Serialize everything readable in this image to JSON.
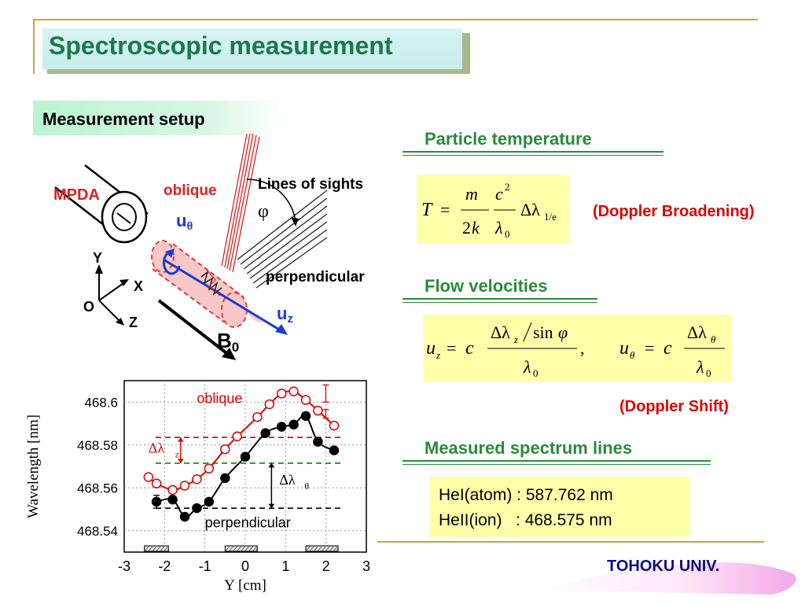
{
  "slide": {
    "title": "Spectroscopic measurement",
    "setup_label": "Measurement setup",
    "footer": "TOHOKU UNIV."
  },
  "diagram": {
    "mpda": "MPDA",
    "oblique": "oblique",
    "lines_of_sights": "Lines of sights",
    "phi": "φ",
    "u_theta": "u",
    "u_theta_sub": "θ",
    "perpendicular": "perpendicular",
    "u_z": "u",
    "u_z_sub": "z",
    "b0": "B",
    "b0_sub": "0",
    "axis_y": "Y",
    "axis_x": "X",
    "axis_z": "Z",
    "origin": "O"
  },
  "sections": {
    "temperature": {
      "title": "Particle temperature",
      "note": "(Doppler Broadening)"
    },
    "flow": {
      "title": "Flow velocities",
      "note": "(Doppler Shift)"
    },
    "spectrum": {
      "title": "Measured spectrum lines",
      "lines": [
        "HeI(atom) : 587.762 nm",
        "HeII(ion)   : 468.575 nm"
      ]
    }
  },
  "chart_data": {
    "type": "scatter",
    "xlabel": "Y [cm]",
    "ylabel": "Wavelength [nm]",
    "xlim": [
      -3,
      3
    ],
    "ylim": [
      468.53,
      468.61
    ],
    "x_ticks": [
      "-3",
      "-2",
      "-1",
      "0",
      "1",
      "2",
      "3"
    ],
    "y_ticks": [
      "468.54",
      "468.56",
      "468.58",
      "468.6"
    ],
    "y_tick_values": [
      468.54,
      468.56,
      468.58,
      468.6
    ],
    "series": [
      {
        "name": "oblique",
        "color": "#dd0000",
        "marker": "open-circle",
        "x": [
          -2.4,
          -2.2,
          -1.8,
          -1.5,
          -1.2,
          -0.9,
          -0.5,
          -0.2,
          0.3,
          0.6,
          0.9,
          1.2,
          1.5,
          1.8,
          2.2
        ],
        "y": [
          468.565,
          468.562,
          468.559,
          468.561,
          468.564,
          468.569,
          468.578,
          468.584,
          468.593,
          468.599,
          468.604,
          468.605,
          468.601,
          468.596,
          468.589
        ]
      },
      {
        "name": "perpendicular",
        "color": "#000000",
        "marker": "filled-circle",
        "x": [
          -2.2,
          -1.8,
          -1.5,
          -1.2,
          -0.9,
          -0.5,
          0.0,
          0.5,
          0.9,
          1.2,
          1.5,
          1.8,
          2.2
        ],
        "y": [
          468.5535,
          468.5545,
          468.5465,
          468.5505,
          468.5535,
          468.5645,
          468.5745,
          468.5855,
          468.5885,
          468.5895,
          468.5935,
          468.5815,
          468.5775
        ]
      }
    ],
    "reference_lines": [
      {
        "y": 468.5835,
        "color": "#dd0000",
        "style": "dashed"
      },
      {
        "y": 468.5715,
        "color": "#008800",
        "style": "dashed"
      },
      {
        "y": 468.5505,
        "color": "#000000",
        "style": "dashed"
      }
    ],
    "hatched_boxes_x": [
      [
        -2.5,
        -1.9
      ],
      [
        -0.5,
        0.3
      ],
      [
        1.5,
        2.3
      ]
    ],
    "annotations": {
      "oblique": "oblique",
      "perpendicular": "perpendicular",
      "delta_z": "Δλ",
      "delta_z_sub": "z",
      "delta_theta": "Δλ",
      "delta_theta_sub": "θ"
    }
  }
}
